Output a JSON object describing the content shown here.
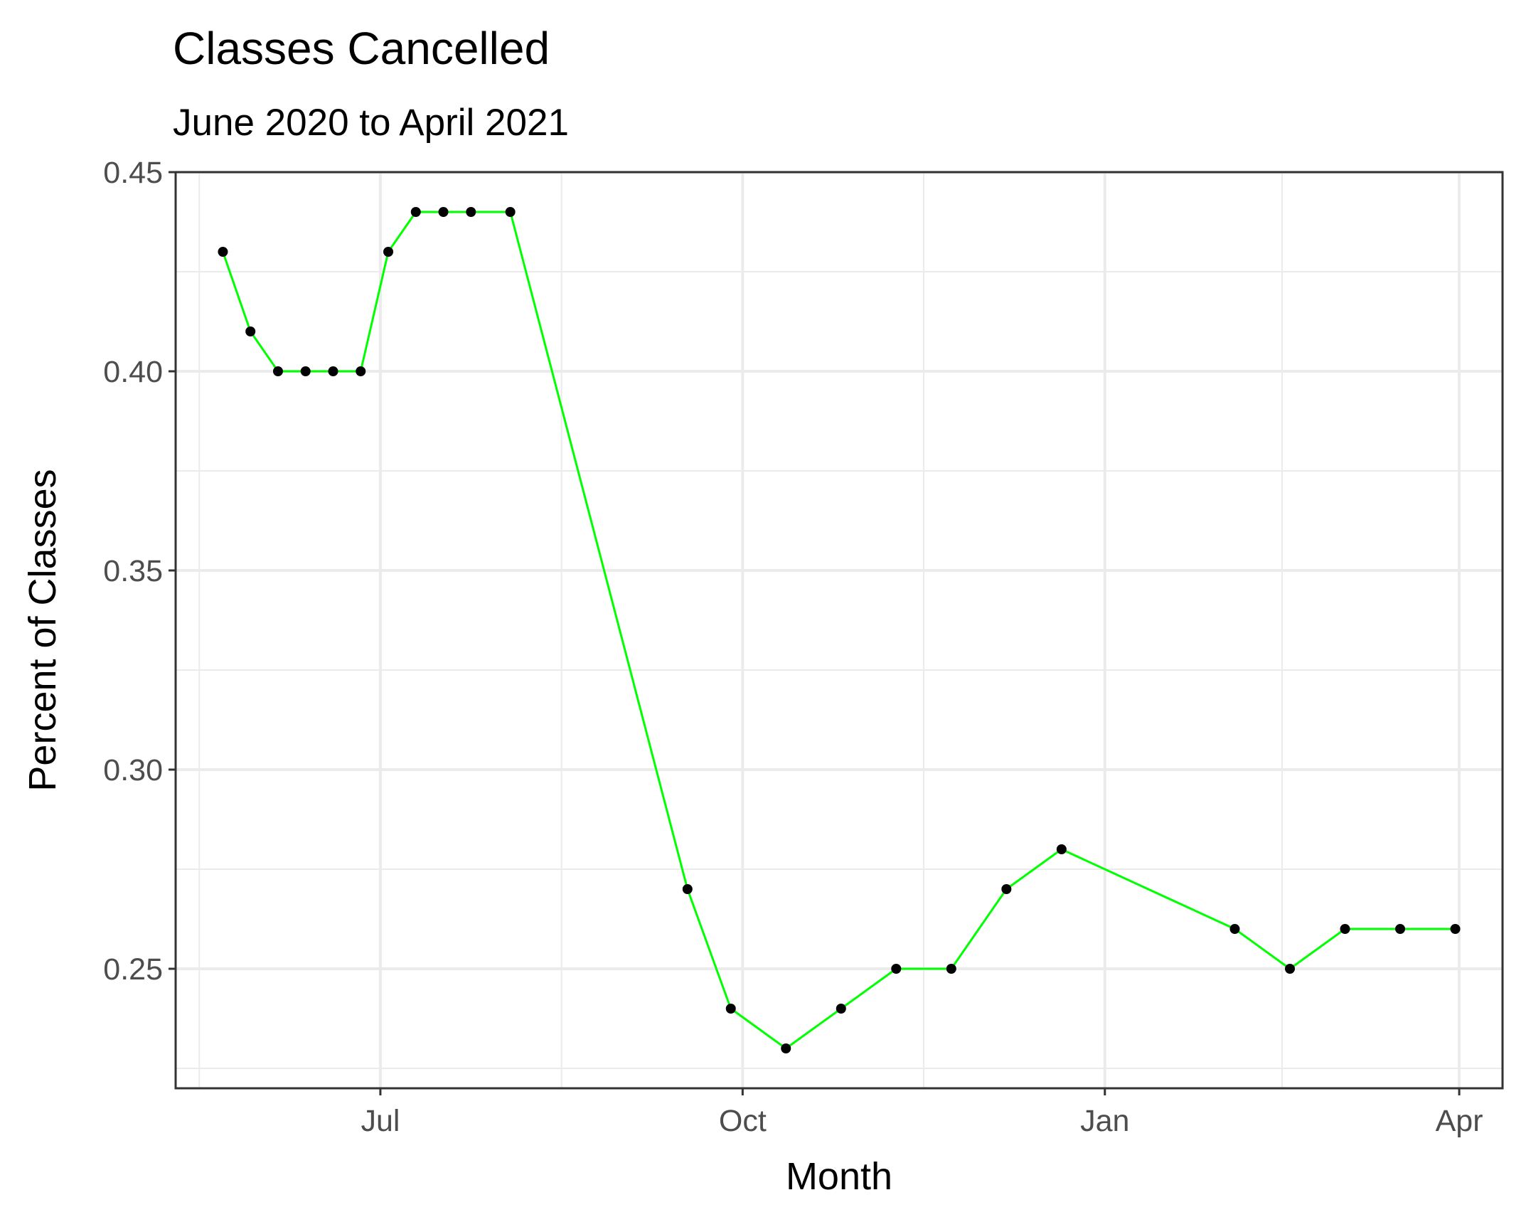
{
  "colors": {
    "line": "#00ff00",
    "point": "#000000",
    "grid": "#ebebeb",
    "panel_border": "#333333",
    "tick_text": "#4d4d4d"
  },
  "chart_data": {
    "type": "line",
    "title": "Classes Cancelled",
    "subtitle": "June 2020 to April 2021",
    "xlabel": "Month",
    "ylabel": "Percent of Classes",
    "xlim": [
      "2020-05-10",
      "2021-04-12"
    ],
    "ylim": [
      0.22,
      0.45
    ],
    "yticks": [
      0.25,
      0.3,
      0.35,
      0.4,
      0.45
    ],
    "ytick_labels": [
      "0.25",
      "0.30",
      "0.35",
      "0.40",
      "0.45"
    ],
    "xticks": [
      "2020-07-01",
      "2020-10-01",
      "2021-01-01",
      "2021-04-01"
    ],
    "xtick_labels": [
      "Jul",
      "Oct",
      "Jan",
      "Apr"
    ],
    "grid": true,
    "legend": "none",
    "series": [
      {
        "x": [
          "2020-05-22",
          "2020-05-29",
          "2020-06-05",
          "2020-06-12",
          "2020-06-19",
          "2020-06-26",
          "2020-07-03",
          "2020-07-10",
          "2020-07-17",
          "2020-07-24",
          "2020-08-03",
          "2020-09-17",
          "2020-09-28",
          "2020-10-12",
          "2020-10-26",
          "2020-11-09",
          "2020-11-23",
          "2020-12-07",
          "2020-12-21",
          "2021-02-03",
          "2021-02-17",
          "2021-03-03",
          "2021-03-17",
          "2021-03-31"
        ],
        "y": [
          0.43,
          0.41,
          0.4,
          0.4,
          0.4,
          0.4,
          0.43,
          0.44,
          0.44,
          0.44,
          0.44,
          0.27,
          0.24,
          0.23,
          0.24,
          0.25,
          0.25,
          0.27,
          0.28,
          0.26,
          0.25,
          0.26,
          0.26,
          0.26
        ]
      }
    ]
  }
}
